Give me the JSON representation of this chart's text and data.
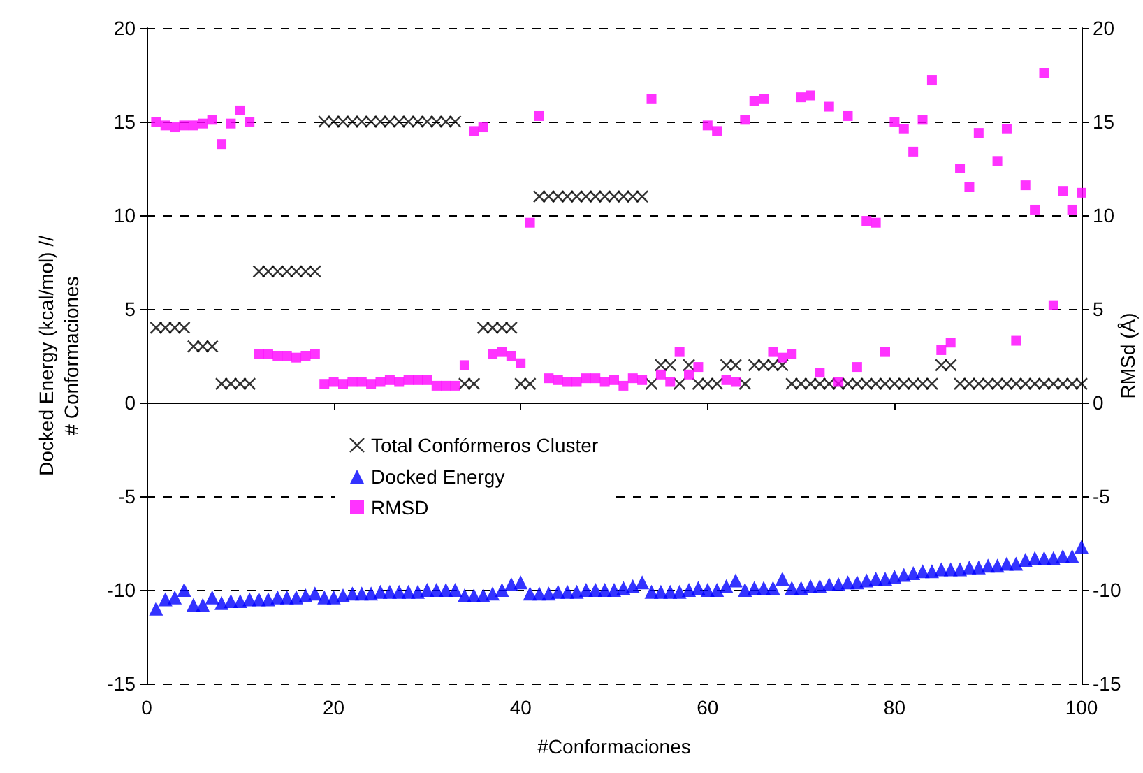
{
  "chart_data": {
    "type": "scatter",
    "xlabel": "#Conformaciones",
    "ylabel": "Docked Energy (kcal/mol) //\n# Conformaciones",
    "y2label": "RMSd (Å)",
    "x": [
      1,
      2,
      3,
      4,
      5,
      6,
      7,
      8,
      9,
      10,
      11,
      12,
      13,
      14,
      15,
      16,
      17,
      18,
      19,
      20,
      21,
      22,
      23,
      24,
      25,
      26,
      27,
      28,
      29,
      30,
      31,
      32,
      33,
      34,
      35,
      36,
      37,
      38,
      39,
      40,
      41,
      42,
      43,
      44,
      45,
      46,
      47,
      48,
      49,
      50,
      51,
      52,
      53,
      54,
      55,
      56,
      57,
      58,
      59,
      60,
      61,
      62,
      63,
      64,
      65,
      66,
      67,
      68,
      69,
      70,
      71,
      72,
      73,
      74,
      75,
      76,
      77,
      78,
      79,
      80,
      81,
      82,
      83,
      84,
      85,
      86,
      87,
      88,
      89,
      90,
      91,
      92,
      93,
      94,
      95,
      96,
      97,
      98,
      99,
      100
    ],
    "xlim": [
      0,
      100
    ],
    "xticks": [
      0,
      20,
      40,
      60,
      80,
      100
    ],
    "ylim": [
      -15,
      20
    ],
    "yticks": [
      -15,
      -10,
      -5,
      0,
      5,
      10,
      15,
      20
    ],
    "y2lim": [
      -15,
      20
    ],
    "y2ticks": [
      -15,
      -10,
      -5,
      0,
      5,
      10,
      15,
      20
    ],
    "grid": "y",
    "legend": "left",
    "series": [
      {
        "name": "Total Confórmeros Cluster",
        "color": "#000000",
        "marker": "cross",
        "values": [
          4,
          4,
          4,
          4,
          3,
          3,
          3,
          1,
          1,
          1,
          1,
          7,
          7,
          7,
          7,
          7,
          7,
          7,
          15,
          15,
          15,
          15,
          15,
          15,
          15,
          15,
          15,
          15,
          15,
          15,
          15,
          15,
          15,
          1,
          1,
          4,
          4,
          4,
          4,
          1,
          1,
          11,
          11,
          11,
          11,
          11,
          11,
          11,
          11,
          11,
          11,
          11,
          11,
          1,
          2,
          2,
          1,
          2,
          1,
          1,
          1,
          2,
          2,
          1,
          2,
          2,
          2,
          2,
          1,
          1,
          1,
          1,
          1,
          1,
          1,
          1,
          1,
          1,
          1,
          1,
          1,
          1,
          1,
          1,
          2,
          2,
          1,
          1,
          1,
          1,
          1,
          1,
          1,
          1,
          1,
          1,
          1,
          1,
          1,
          1
        ]
      },
      {
        "name": "Docked Energy",
        "color": "#0000ff",
        "marker": "triangle",
        "values": [
          -11.0,
          -10.5,
          -10.4,
          -10.0,
          -10.8,
          -10.8,
          -10.4,
          -10.7,
          -10.6,
          -10.6,
          -10.5,
          -10.5,
          -10.5,
          -10.4,
          -10.4,
          -10.4,
          -10.3,
          -10.2,
          -10.4,
          -10.4,
          -10.3,
          -10.2,
          -10.2,
          -10.2,
          -10.1,
          -10.1,
          -10.1,
          -10.1,
          -10.1,
          -10.0,
          -10.0,
          -10.0,
          -10.0,
          -10.3,
          -10.3,
          -10.3,
          -10.2,
          -10.0,
          -9.7,
          -9.6,
          -10.2,
          -10.2,
          -10.2,
          -10.1,
          -10.1,
          -10.1,
          -10.0,
          -10.0,
          -10.0,
          -10.0,
          -9.9,
          -9.8,
          -9.6,
          -10.1,
          -10.1,
          -10.1,
          -10.1,
          -10.0,
          -9.9,
          -10.0,
          -10.0,
          -9.8,
          -9.5,
          -10.0,
          -9.9,
          -9.9,
          -9.9,
          -9.4,
          -9.9,
          -9.9,
          -9.8,
          -9.8,
          -9.7,
          -9.7,
          -9.6,
          -9.6,
          -9.5,
          -9.4,
          -9.4,
          -9.3,
          -9.2,
          -9.1,
          -9.0,
          -9.0,
          -8.9,
          -8.9,
          -8.9,
          -8.8,
          -8.8,
          -8.7,
          -8.7,
          -8.6,
          -8.6,
          -8.4,
          -8.3,
          -8.3,
          -8.3,
          -8.2,
          -8.2,
          -7.7
        ]
      },
      {
        "name": "RMSD",
        "color": "#ff00ff",
        "marker": "square",
        "axis": "y2",
        "values": [
          15.0,
          14.8,
          14.7,
          14.8,
          14.8,
          14.9,
          15.1,
          13.8,
          14.9,
          15.6,
          15.0,
          2.6,
          2.6,
          2.5,
          2.5,
          2.4,
          2.5,
          2.6,
          1.0,
          1.1,
          1.0,
          1.1,
          1.1,
          1.0,
          1.1,
          1.2,
          1.1,
          1.2,
          1.2,
          1.2,
          0.9,
          0.9,
          0.9,
          2.0,
          14.5,
          14.7,
          2.6,
          2.7,
          2.5,
          2.1,
          9.6,
          15.3,
          1.3,
          1.2,
          1.1,
          1.1,
          1.3,
          1.3,
          1.1,
          1.2,
          0.9,
          1.3,
          1.2,
          16.2,
          1.5,
          1.1,
          2.7,
          1.5,
          1.9,
          14.8,
          14.5,
          1.2,
          1.1,
          15.1,
          16.1,
          16.2,
          2.7,
          2.4,
          2.6,
          16.3,
          16.4,
          1.6,
          15.8,
          1.1,
          15.3,
          1.9,
          9.7,
          9.6,
          2.7,
          15.0,
          14.6,
          13.4,
          15.1,
          17.2,
          2.8,
          3.2,
          12.5,
          11.5,
          14.4,
          null,
          12.9,
          14.6,
          3.3,
          11.6,
          10.3,
          17.6,
          5.2,
          11.3,
          10.3,
          11.2
        ]
      }
    ]
  }
}
